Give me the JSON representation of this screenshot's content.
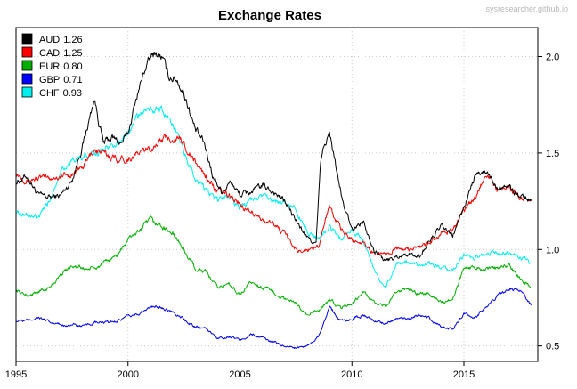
{
  "chart_data": {
    "type": "line",
    "title": "Exchange Rates",
    "watermark": "sysresearcher.github.io",
    "x_ticks": [
      "1995",
      "2000",
      "2005",
      "2010",
      "2015"
    ],
    "y_ticks": [
      "0.5",
      "1.0",
      "1.5",
      "2.0"
    ],
    "xlim": [
      1995,
      2018.3
    ],
    "ylim": [
      0.42,
      2.15
    ],
    "x_tick_values": [
      1995,
      2000,
      2005,
      2010,
      2015
    ],
    "y_tick_values": [
      0.5,
      1.0,
      1.5,
      2.0
    ],
    "grid": true,
    "legend_position": "top-left",
    "y_axis_side": "right",
    "series": [
      {
        "name": "AUD",
        "latest": "1.26",
        "color": "#000000",
        "x": [
          1995.0,
          1995.5,
          1996.0,
          1996.5,
          1997.0,
          1997.5,
          1998.0,
          1998.5,
          1998.9,
          1999.3,
          1999.7,
          2000.0,
          2000.4,
          2000.8,
          2001.2,
          2001.5,
          2001.8,
          2002.2,
          2002.6,
          2003.0,
          2003.4,
          2003.8,
          2004.2,
          2004.6,
          2005.0,
          2005.5,
          2006.0,
          2006.5,
          2007.0,
          2007.5,
          2008.0,
          2008.4,
          2008.6,
          2008.8,
          2009.0,
          2009.3,
          2009.6,
          2010.0,
          2010.5,
          2011.0,
          2011.5,
          2012.0,
          2012.5,
          2013.0,
          2013.5,
          2014.0,
          2014.5,
          2015.0,
          2015.5,
          2016.0,
          2016.5,
          2017.0,
          2017.5,
          2018.0
        ],
        "y": [
          1.35,
          1.38,
          1.28,
          1.27,
          1.28,
          1.36,
          1.55,
          1.78,
          1.55,
          1.58,
          1.55,
          1.6,
          1.8,
          1.95,
          2.02,
          2.0,
          1.9,
          1.88,
          1.78,
          1.62,
          1.55,
          1.38,
          1.3,
          1.35,
          1.28,
          1.3,
          1.33,
          1.3,
          1.25,
          1.15,
          1.06,
          1.03,
          1.45,
          1.55,
          1.6,
          1.42,
          1.24,
          1.1,
          1.15,
          1.0,
          0.94,
          0.96,
          0.98,
          0.96,
          1.05,
          1.12,
          1.07,
          1.22,
          1.38,
          1.4,
          1.33,
          1.33,
          1.27,
          1.26
        ]
      },
      {
        "name": "CAD",
        "latest": "1.25",
        "color": "#ff0000",
        "x": [
          1995.0,
          1995.5,
          1996.0,
          1996.5,
          1997.0,
          1997.5,
          1998.0,
          1998.5,
          1999.0,
          1999.5,
          2000.0,
          2000.5,
          2001.0,
          2001.5,
          2002.0,
          2002.5,
          2003.0,
          2003.5,
          2004.0,
          2004.5,
          2005.0,
          2005.5,
          2006.0,
          2006.5,
          2007.0,
          2007.5,
          2008.0,
          2008.5,
          2009.0,
          2009.5,
          2010.0,
          2010.5,
          2011.0,
          2011.5,
          2012.0,
          2012.5,
          2013.0,
          2013.5,
          2014.0,
          2014.5,
          2015.0,
          2015.5,
          2016.0,
          2016.5,
          2017.0,
          2017.5,
          2018.0
        ],
        "y": [
          1.4,
          1.36,
          1.37,
          1.37,
          1.38,
          1.39,
          1.43,
          1.52,
          1.49,
          1.47,
          1.47,
          1.5,
          1.52,
          1.57,
          1.58,
          1.55,
          1.45,
          1.38,
          1.3,
          1.28,
          1.24,
          1.2,
          1.15,
          1.13,
          1.08,
          1.0,
          0.99,
          1.02,
          1.23,
          1.1,
          1.05,
          1.04,
          0.98,
          0.98,
          1.0,
          1.0,
          1.01,
          1.04,
          1.08,
          1.1,
          1.2,
          1.27,
          1.4,
          1.3,
          1.33,
          1.27,
          1.25
        ]
      },
      {
        "name": "EUR",
        "latest": "0.80",
        "color": "#00b000",
        "x": [
          1995.0,
          1995.5,
          1996.0,
          1996.5,
          1997.0,
          1997.5,
          1998.0,
          1998.5,
          1999.0,
          1999.5,
          2000.0,
          2000.5,
          2001.0,
          2001.5,
          2002.0,
          2002.5,
          2003.0,
          2003.5,
          2004.0,
          2004.5,
          2005.0,
          2005.5,
          2006.0,
          2006.5,
          2007.0,
          2007.5,
          2008.0,
          2008.5,
          2009.0,
          2009.5,
          2010.0,
          2010.5,
          2011.0,
          2011.5,
          2012.0,
          2012.5,
          2013.0,
          2013.5,
          2014.0,
          2014.5,
          2015.0,
          2015.5,
          2016.0,
          2016.5,
          2017.0,
          2017.5,
          2018.0
        ],
        "y": [
          0.79,
          0.76,
          0.78,
          0.8,
          0.87,
          0.92,
          0.9,
          0.9,
          0.93,
          0.97,
          1.05,
          1.1,
          1.15,
          1.12,
          1.08,
          1.0,
          0.9,
          0.88,
          0.8,
          0.82,
          0.77,
          0.83,
          0.8,
          0.78,
          0.74,
          0.72,
          0.66,
          0.68,
          0.74,
          0.7,
          0.72,
          0.78,
          0.72,
          0.7,
          0.78,
          0.8,
          0.77,
          0.77,
          0.73,
          0.74,
          0.9,
          0.91,
          0.9,
          0.9,
          0.92,
          0.85,
          0.8
        ]
      },
      {
        "name": "GBP",
        "latest": "0.71",
        "color": "#0000ff",
        "x": [
          1995.0,
          1995.5,
          1996.0,
          1996.5,
          1997.0,
          1997.5,
          1998.0,
          1998.5,
          1999.0,
          1999.5,
          2000.0,
          2000.5,
          2001.0,
          2001.5,
          2002.0,
          2002.5,
          2003.0,
          2003.5,
          2004.0,
          2004.5,
          2005.0,
          2005.5,
          2006.0,
          2006.5,
          2007.0,
          2007.5,
          2008.0,
          2008.5,
          2009.0,
          2009.5,
          2010.0,
          2010.5,
          2011.0,
          2011.5,
          2012.0,
          2012.5,
          2013.0,
          2013.5,
          2014.0,
          2014.5,
          2015.0,
          2015.5,
          2016.0,
          2016.5,
          2017.0,
          2017.5,
          2018.0
        ],
        "y": [
          0.63,
          0.63,
          0.65,
          0.62,
          0.61,
          0.61,
          0.6,
          0.62,
          0.62,
          0.63,
          0.65,
          0.67,
          0.7,
          0.7,
          0.68,
          0.64,
          0.6,
          0.59,
          0.54,
          0.55,
          0.53,
          0.56,
          0.54,
          0.52,
          0.5,
          0.49,
          0.5,
          0.55,
          0.7,
          0.63,
          0.64,
          0.66,
          0.63,
          0.62,
          0.64,
          0.64,
          0.66,
          0.64,
          0.6,
          0.59,
          0.66,
          0.65,
          0.7,
          0.76,
          0.8,
          0.78,
          0.71
        ]
      },
      {
        "name": "CHF",
        "latest": "0.93",
        "color": "#00f0f0",
        "x": [
          1995.0,
          1995.5,
          1996.0,
          1996.5,
          1997.0,
          1997.5,
          1998.0,
          1998.5,
          1999.0,
          1999.5,
          2000.0,
          2000.5,
          2001.0,
          2001.5,
          2002.0,
          2002.5,
          2003.0,
          2003.5,
          2004.0,
          2004.5,
          2005.0,
          2005.5,
          2006.0,
          2006.5,
          2007.0,
          2007.5,
          2008.0,
          2008.5,
          2009.0,
          2009.5,
          2010.0,
          2010.5,
          2011.0,
          2011.5,
          2012.0,
          2012.5,
          2013.0,
          2013.5,
          2014.0,
          2014.5,
          2015.0,
          2015.5,
          2016.0,
          2016.5,
          2017.0,
          2017.5,
          2018.0
        ],
        "y": [
          1.2,
          1.18,
          1.16,
          1.25,
          1.42,
          1.45,
          1.48,
          1.5,
          1.52,
          1.55,
          1.6,
          1.7,
          1.73,
          1.72,
          1.65,
          1.5,
          1.38,
          1.3,
          1.25,
          1.28,
          1.22,
          1.25,
          1.28,
          1.25,
          1.24,
          1.2,
          1.1,
          1.05,
          1.12,
          1.05,
          1.1,
          1.05,
          0.9,
          0.8,
          0.93,
          0.94,
          0.92,
          0.93,
          0.9,
          0.89,
          0.97,
          0.96,
          0.98,
          0.98,
          0.99,
          0.97,
          0.93
        ]
      }
    ]
  }
}
